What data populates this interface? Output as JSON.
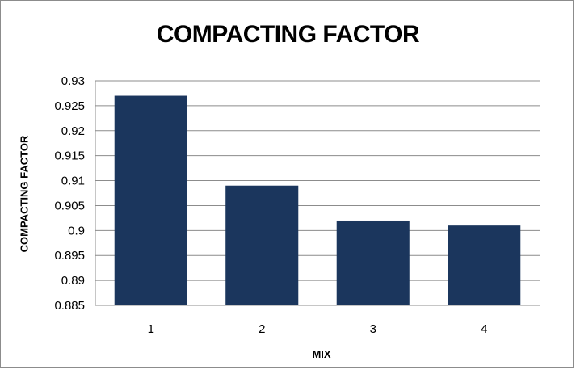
{
  "chart_data": {
    "type": "bar",
    "title": "COMPACTING FACTOR",
    "xlabel": "MIX",
    "ylabel": "COMPACTING FACTOR",
    "categories": [
      "1",
      "2",
      "3",
      "4"
    ],
    "values": [
      0.927,
      0.909,
      0.902,
      0.901
    ],
    "ylim": [
      0.885,
      0.93
    ],
    "yticks": [
      "0.93",
      "0.925",
      "0.92",
      "0.915",
      "0.91",
      "0.905",
      "0.9",
      "0.895",
      "0.89",
      "0.885"
    ],
    "grid": true,
    "bar_color": "#1b365d",
    "grid_color": "#8c8c8c"
  }
}
